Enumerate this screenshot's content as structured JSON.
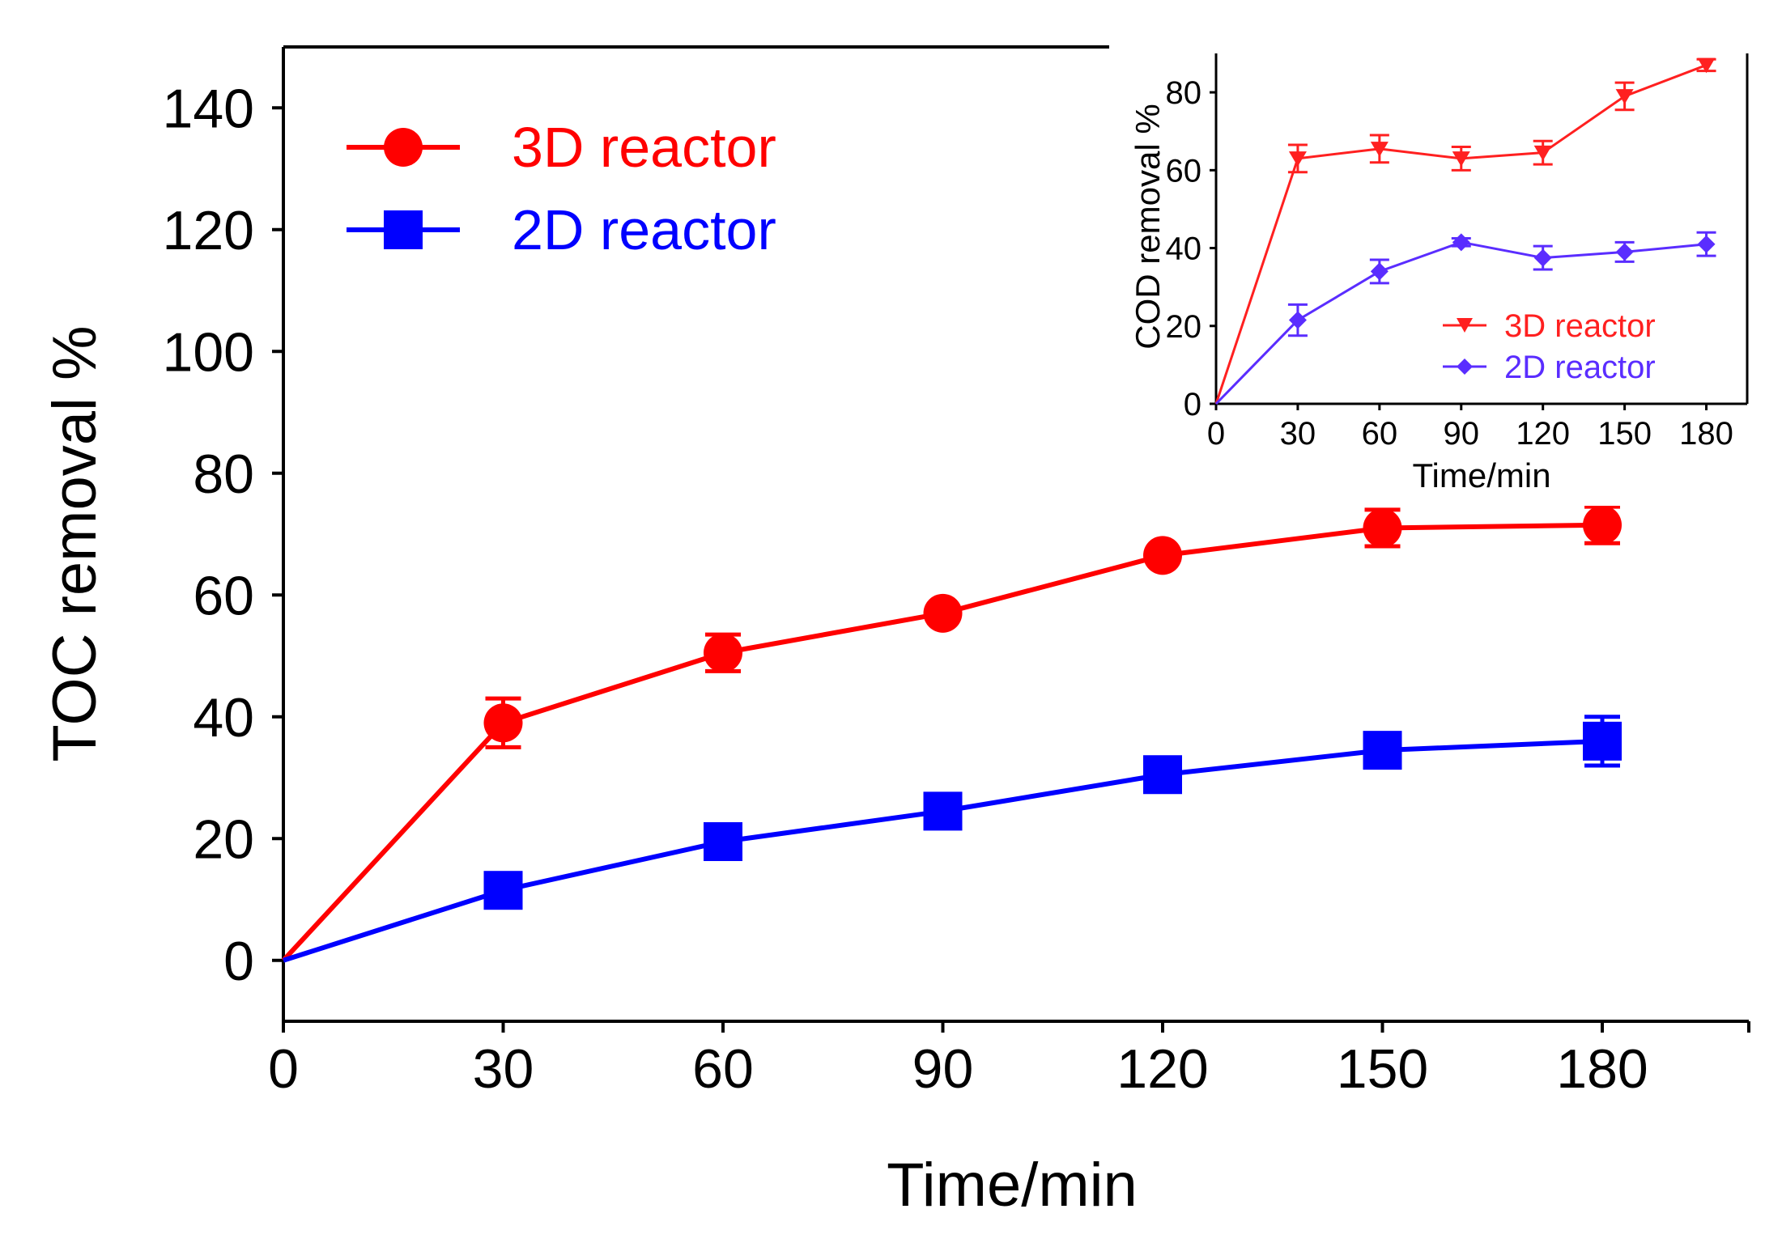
{
  "chart_data": [
    {
      "type": "line",
      "name": "main",
      "title": "",
      "xlabel": "Time/min",
      "ylabel": "TOC removal %",
      "xlim": [
        0,
        200
      ],
      "ylim": [
        -10,
        150
      ],
      "x_ticks": [
        0,
        30,
        60,
        90,
        120,
        150,
        180
      ],
      "y_ticks": [
        0,
        20,
        40,
        60,
        80,
        100,
        120,
        140
      ],
      "legend_position": "top-left",
      "x": [
        0,
        30,
        60,
        90,
        120,
        150,
        180
      ],
      "series": [
        {
          "name": "3D reactor",
          "color": "#ff0000",
          "marker": "circle",
          "values": [
            0,
            39,
            50.5,
            57,
            66.5,
            71,
            71.5
          ],
          "errors": [
            0,
            4,
            3,
            0,
            0,
            3,
            3
          ]
        },
        {
          "name": "2D reactor",
          "color": "#0000ff",
          "marker": "square",
          "values": [
            0,
            11.5,
            19.5,
            24.5,
            30.5,
            34.5,
            36
          ],
          "errors": [
            0,
            0,
            0,
            0,
            0,
            0,
            4
          ]
        }
      ]
    },
    {
      "type": "line",
      "name": "inset",
      "title": "",
      "xlabel": "Time/min",
      "ylabel": "COD removal %",
      "xlim": [
        0,
        195
      ],
      "ylim": [
        0,
        90
      ],
      "x_ticks": [
        0,
        30,
        60,
        90,
        120,
        150,
        180
      ],
      "y_ticks": [
        0,
        20,
        40,
        60,
        80
      ],
      "legend_position": "bottom-right",
      "x": [
        0,
        30,
        60,
        90,
        120,
        150,
        180
      ],
      "series": [
        {
          "name": "3D reactor",
          "color": "#ff2020",
          "marker": "triangle-down",
          "values": [
            0,
            63,
            65.5,
            63,
            64.5,
            79,
            87
          ],
          "errors": [
            0,
            3.5,
            3.5,
            3,
            3,
            3.5,
            1.5
          ]
        },
        {
          "name": "2D reactor",
          "color": "#5a2dff",
          "marker": "diamond",
          "values": [
            0,
            21.5,
            34,
            41.5,
            37.5,
            39,
            41
          ],
          "errors": [
            0,
            4,
            3,
            1,
            3,
            2.5,
            3
          ]
        }
      ]
    }
  ]
}
